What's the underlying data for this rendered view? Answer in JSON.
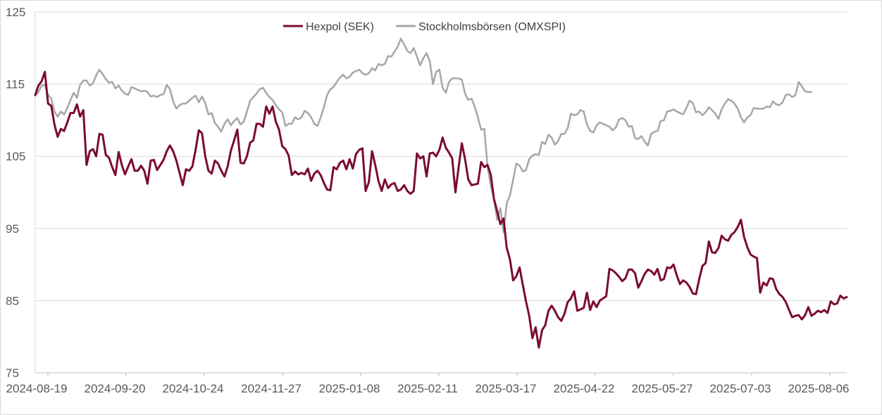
{
  "chart_data": {
    "type": "line",
    "title": "",
    "xlabel": "",
    "ylabel": "",
    "ylim": [
      75,
      125
    ],
    "yticks": [
      75,
      85,
      95,
      105,
      115,
      125
    ],
    "grid": "horizontal",
    "legend_position": "top-center",
    "x_tick_labels": [
      "2024-08-19",
      "2024-09-20",
      "2024-10-24",
      "2024-11-27",
      "2025-01-08",
      "2025-02-11",
      "2025-03-17",
      "2025-04-22",
      "2025-05-27",
      "2025-07-03",
      "2025-08-06"
    ],
    "series": [
      {
        "name": "Hexpol (SEK)",
        "color": "#7b0c2e",
        "values": [
          113.5,
          114.8,
          115.4,
          116.7,
          112.3,
          112.0,
          109.4,
          107.7,
          108.8,
          108.5,
          109.7,
          111.0,
          111.0,
          112.2,
          110.5,
          111.4,
          103.8,
          105.7,
          106.0,
          105.0,
          108.1,
          108.0,
          105.2,
          104.8,
          103.5,
          102.4,
          105.6,
          103.8,
          102.5,
          103.6,
          104.6,
          103.0,
          103.0,
          103.7,
          103.0,
          101.2,
          104.4,
          104.5,
          103.1,
          103.8,
          104.5,
          105.7,
          106.5,
          105.7,
          104.4,
          102.7,
          101.0,
          103.2,
          103.0,
          103.6,
          105.9,
          108.6,
          108.2,
          105.0,
          103.0,
          102.6,
          104.4,
          104.0,
          103.0,
          102.2,
          103.6,
          105.8,
          107.2,
          108.7,
          104.1,
          104.0,
          105.0,
          106.9,
          107.2,
          109.5,
          109.5,
          109.1,
          111.9,
          110.9,
          111.9,
          109.8,
          108.7,
          106.4,
          106.0,
          105.1,
          102.4,
          102.9,
          102.5,
          102.7,
          102.5,
          103.3,
          101.6,
          102.6,
          103.0,
          102.4,
          101.3,
          100.4,
          100.3,
          103.5,
          103.2,
          104.1,
          104.4,
          103.2,
          104.6,
          103.3,
          105.3,
          105.9,
          106.1,
          100.2,
          101.4,
          105.7,
          103.8,
          101.6,
          100.2,
          101.8,
          100.6,
          101.1,
          101.3,
          100.2,
          100.4,
          101.0,
          100.2,
          99.8,
          100.2,
          105.4,
          104.7,
          105.0,
          102.2,
          105.4,
          105.5,
          105.0,
          105.9,
          107.6,
          106.2,
          105.5,
          104.7,
          100.0,
          103.5,
          106.8,
          104.6,
          101.8,
          101.0,
          101.1,
          101.2,
          104.2,
          103.5,
          103.8,
          102.5,
          99.1,
          97.4,
          95.6,
          96.4,
          92.3,
          90.7,
          87.8,
          88.4,
          89.6,
          87.2,
          84.9,
          82.9,
          79.8,
          81.3,
          78.5,
          80.9,
          81.6,
          83.6,
          84.3,
          83.6,
          82.7,
          82.2,
          83.2,
          84.8,
          85.3,
          86.3,
          83.6,
          83.8,
          84.0,
          86.1,
          83.7,
          84.9,
          84.1,
          85.0,
          85.3,
          85.6,
          89.4,
          89.2,
          88.8,
          88.3,
          87.7,
          88.1,
          89.3,
          89.3,
          88.8,
          86.8,
          87.7,
          88.7,
          89.3,
          89.1,
          88.6,
          89.4,
          87.8,
          88.0,
          89.6,
          89.5,
          90.0,
          88.5,
          87.3,
          87.8,
          87.5,
          86.9,
          86.0,
          85.9,
          88.0,
          89.8,
          90.2,
          93.2,
          91.7,
          91.6,
          92.3,
          94.0,
          93.5,
          93.3,
          94.1,
          94.5,
          95.2,
          96.2,
          93.8,
          92.4,
          91.4,
          91.1,
          90.9,
          86.1,
          87.5,
          87.1,
          88.1,
          88.0,
          86.6,
          85.9,
          85.5,
          84.8,
          83.7,
          82.7,
          82.9,
          83.0,
          82.4,
          83.0,
          84.1,
          82.9,
          83.2,
          83.6,
          83.4,
          83.7,
          83.3,
          84.9,
          84.5,
          84.6,
          85.7,
          85.3,
          85.5
        ]
      },
      {
        "name": "Stockholmsbörsen (OMXSPI)",
        "color": "#a6a6a6",
        "values": [
          113.4,
          113.9,
          114.8,
          114.9,
          113.5,
          113.0,
          111.2,
          110.5,
          111.2,
          110.8,
          111.7,
          112.8,
          113.8,
          113.1,
          114.9,
          115.5,
          115.5,
          114.8,
          115.1,
          116.2,
          117.0,
          116.4,
          115.7,
          115.2,
          115.3,
          114.4,
          114.8,
          114.1,
          113.7,
          113.5,
          114.6,
          114.4,
          114.2,
          114.0,
          114.1,
          113.9,
          113.3,
          113.4,
          113.2,
          113.5,
          113.6,
          114.9,
          114.3,
          112.6,
          111.6,
          112.1,
          112.3,
          112.3,
          112.7,
          113.1,
          113.4,
          112.5,
          113.3,
          112.4,
          110.8,
          111.0,
          109.6,
          109.1,
          108.4,
          109.5,
          110.1,
          109.3,
          109.9,
          110.3,
          109.4,
          109.8,
          111.2,
          112.7,
          113.2,
          113.7,
          114.3,
          114.5,
          113.8,
          113.2,
          112.8,
          112.1,
          111.5,
          111.1,
          109.2,
          109.5,
          109.5,
          110.4,
          110.1,
          110.4,
          111.3,
          111.0,
          110.4,
          109.5,
          109.2,
          110.4,
          111.8,
          113.5,
          114.3,
          114.6,
          115.3,
          115.9,
          116.3,
          115.8,
          116.0,
          116.6,
          116.8,
          117.0,
          116.5,
          116.3,
          116.5,
          117.2,
          116.9,
          117.8,
          117.6,
          117.8,
          118.9,
          118.8,
          119.5,
          120.2,
          121.3,
          120.5,
          119.6,
          119.3,
          120.0,
          118.8,
          117.6,
          118.6,
          119.3,
          118.2,
          115.0,
          116.7,
          117.0,
          114.5,
          113.8,
          115.3,
          115.8,
          115.8,
          115.8,
          115.6,
          113.7,
          112.8,
          113.0,
          111.9,
          110.4,
          108.7,
          108.8,
          103.6,
          101.0,
          99.1,
          96.2,
          97.8,
          94.5,
          98.5,
          99.6,
          101.8,
          104.0,
          103.7,
          102.9,
          103.1,
          104.6,
          105.1,
          105.3,
          105.2,
          107.0,
          106.7,
          108.0,
          107.6,
          106.6,
          107.1,
          108.1,
          108.1,
          108.9,
          110.9,
          110.7,
          110.8,
          111.4,
          111.2,
          109.4,
          108.5,
          108.3,
          109.3,
          109.7,
          109.5,
          109.3,
          109.1,
          108.6,
          109.0,
          110.1,
          110.3,
          110.0,
          109.1,
          109.2,
          107.5,
          107.4,
          107.8,
          107.0,
          106.5,
          108.1,
          108.4,
          108.5,
          109.9,
          110.0,
          111.2,
          111.3,
          111.5,
          111.2,
          111.0,
          110.8,
          111.7,
          112.7,
          112.4,
          111.1,
          111.2,
          110.7,
          111.1,
          111.8,
          111.4,
          110.9,
          110.2,
          111.5,
          112.3,
          112.9,
          112.7,
          112.3,
          111.6,
          110.4,
          109.7,
          110.4,
          110.7,
          111.7,
          111.6,
          111.6,
          111.6,
          111.9,
          111.8,
          112.6,
          112.2,
          112.1,
          112.5,
          113.5,
          113.6,
          113.2,
          113.5,
          115.3,
          114.7,
          114.0,
          113.9,
          113.9
        ]
      }
    ]
  }
}
